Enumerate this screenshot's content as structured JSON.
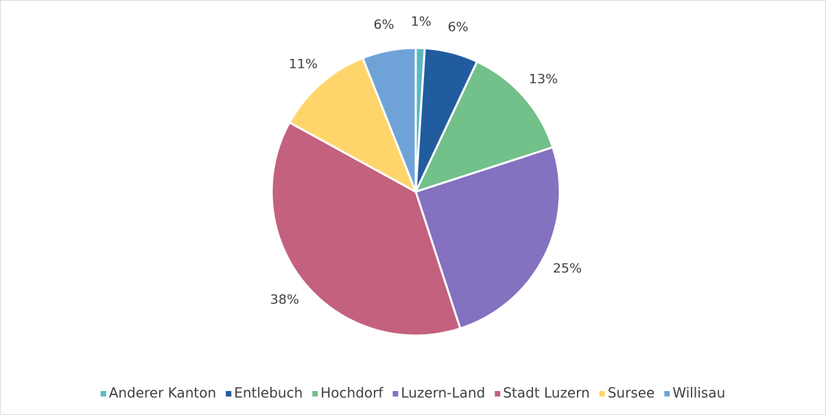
{
  "chart_data": {
    "type": "pie",
    "categories": [
      "Anderer Kanton",
      "Entlebuch",
      "Hochdorf",
      "Luzern-Land",
      "Stadt Luzern",
      "Sursee",
      "Willisau"
    ],
    "values": [
      1,
      6,
      13,
      25,
      38,
      11,
      6
    ],
    "value_labels": [
      "1%",
      "6%",
      "13%",
      "25%",
      "38%",
      "11%",
      "6%"
    ],
    "colors": [
      "#5bb8c4",
      "#215d9e",
      "#72c08a",
      "#8471c0",
      "#c4617e",
      "#ffd56b",
      "#6fa3d8"
    ],
    "legend": "bottom"
  }
}
